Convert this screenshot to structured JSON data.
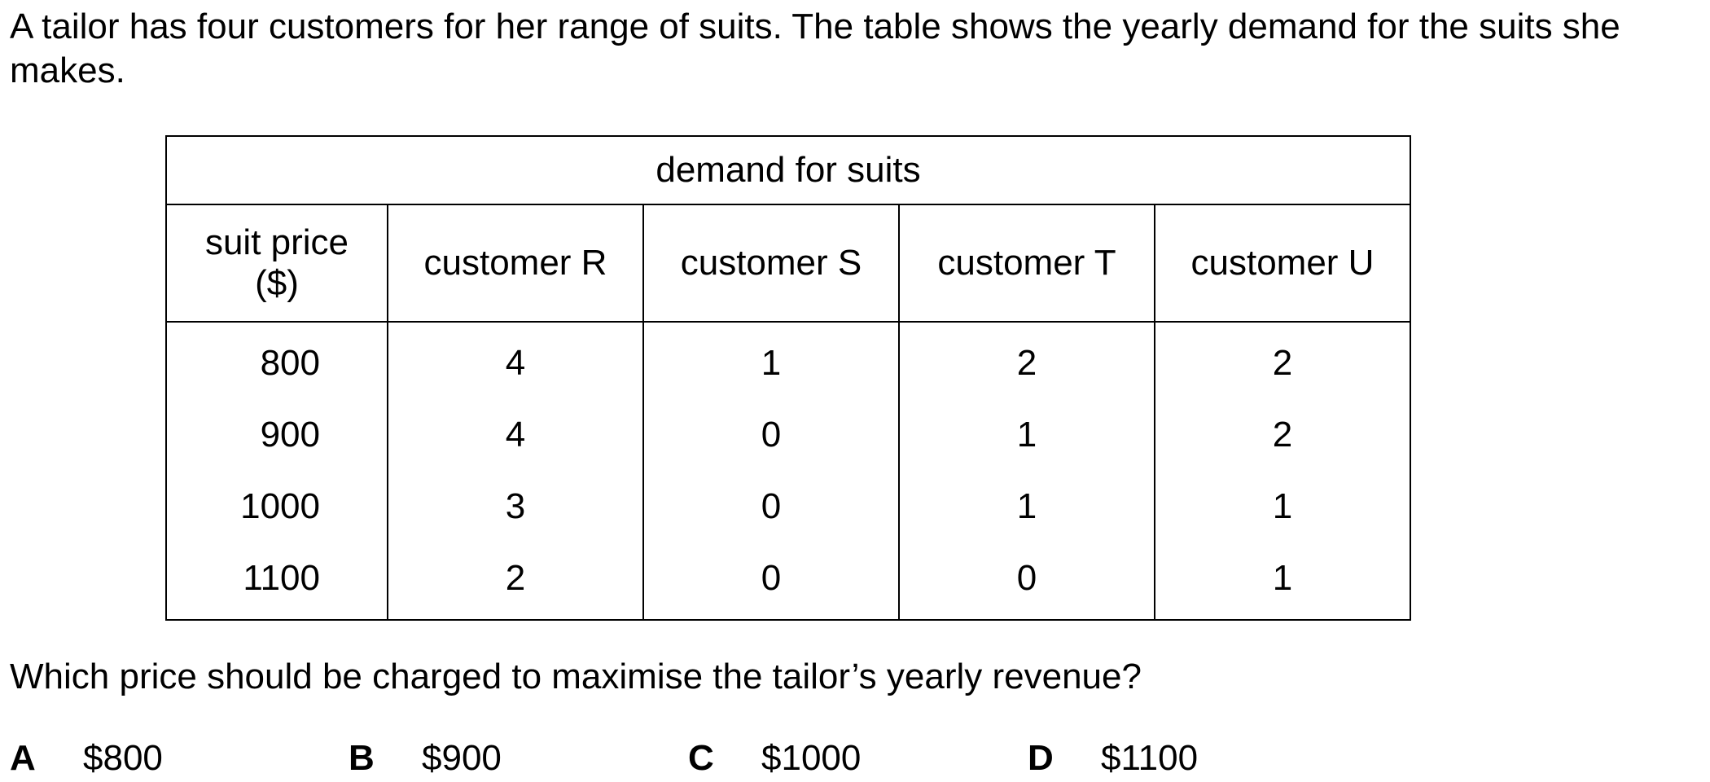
{
  "intro_text": "A tailor has four customers for her range of suits. The table shows the yearly demand for the suits she makes.",
  "table": {
    "caption": "demand for suits",
    "price_header_line1": "suit price",
    "price_header_line2": "($)",
    "customer_headers": [
      "customer R",
      "customer S",
      "customer T",
      "customer U"
    ],
    "rows": [
      {
        "price": "800",
        "values": [
          "4",
          "1",
          "2",
          "2"
        ]
      },
      {
        "price": "900",
        "values": [
          "4",
          "0",
          "1",
          "2"
        ]
      },
      {
        "price": "1000",
        "values": [
          "3",
          "0",
          "1",
          "1"
        ]
      },
      {
        "price": "1100",
        "values": [
          "2",
          "0",
          "0",
          "1"
        ]
      }
    ]
  },
  "question": "Which price should be charged to maximise the tailor’s yearly revenue?",
  "options": [
    {
      "letter": "A",
      "value": "$800"
    },
    {
      "letter": "B",
      "value": "$900"
    },
    {
      "letter": "C",
      "value": "$1000"
    },
    {
      "letter": "D",
      "value": "$1100"
    }
  ]
}
